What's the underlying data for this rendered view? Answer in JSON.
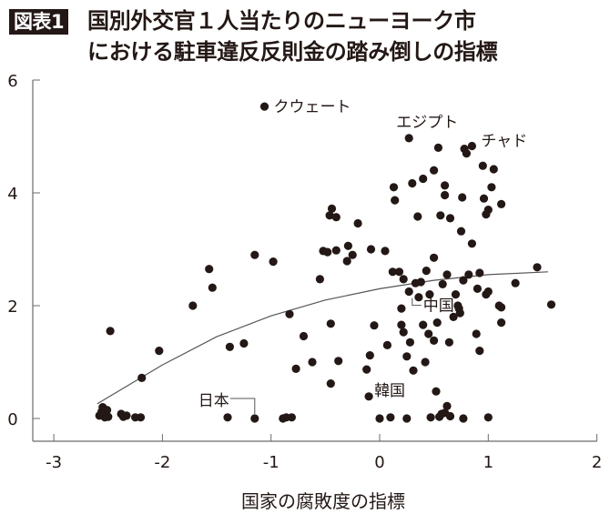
{
  "header": {
    "badge": "図表1",
    "title_line1": "国別外交官１人当たりのニューヨーク市",
    "title_line2": "における駐車違反反則金の踏み倒しの指標"
  },
  "colors": {
    "ink": "#231815",
    "axis": "#6b6b6b",
    "background": "#ffffff"
  },
  "chart_data": {
    "type": "scatter",
    "title": "国別外交官１人当たりのニューヨーク市における駐車違反反則金の踏み倒しの指標",
    "xlabel": "国家の腐敗度の指標",
    "ylabel": "",
    "xlim": [
      -3.2,
      2
    ],
    "ylim": [
      -0.4,
      6
    ],
    "x_ticks": [
      -3,
      -2,
      -1,
      0,
      1,
      2
    ],
    "y_ticks": [
      0,
      2,
      4,
      6
    ],
    "grid": false,
    "legend": null,
    "trendline": {
      "type": "quadratic fit",
      "points": [
        [
          -2.6,
          0.26
        ],
        [
          -2.0,
          0.95
        ],
        [
          -1.5,
          1.45
        ],
        [
          -1.0,
          1.82
        ],
        [
          -0.5,
          2.1
        ],
        [
          0.0,
          2.3
        ],
        [
          0.5,
          2.45
        ],
        [
          1.0,
          2.55
        ],
        [
          1.55,
          2.6
        ]
      ]
    },
    "annotations": [
      {
        "label": "クウェート",
        "x": -1.06,
        "y": 5.53
      },
      {
        "label": "エジプト",
        "x": 0.27,
        "y": 4.97
      },
      {
        "label": "チャド",
        "x": 0.85,
        "y": 4.83
      },
      {
        "label": "中国",
        "x": 0.3,
        "y": 2.2
      },
      {
        "label": "日本",
        "x": -1.15,
        "y": 0.0
      },
      {
        "label": "韓国",
        "x": -0.1,
        "y": 0.39
      }
    ],
    "points": [
      {
        "x": -2.58,
        "y": 0.05
      },
      {
        "x": -2.56,
        "y": 0.12
      },
      {
        "x": -2.55,
        "y": 0.2
      },
      {
        "x": -2.54,
        "y": 0.08
      },
      {
        "x": -2.53,
        "y": 0.02
      },
      {
        "x": -2.51,
        "y": 0.15
      },
      {
        "x": -2.5,
        "y": 0.03
      },
      {
        "x": -2.48,
        "y": 1.55
      },
      {
        "x": -2.38,
        "y": 0.08
      },
      {
        "x": -2.36,
        "y": 0.03
      },
      {
        "x": -2.33,
        "y": 0.05
      },
      {
        "x": -2.25,
        "y": 0.02
      },
      {
        "x": -2.2,
        "y": 0.02
      },
      {
        "x": -2.19,
        "y": 0.72
      },
      {
        "x": -2.03,
        "y": 1.2
      },
      {
        "x": -1.72,
        "y": 2.0
      },
      {
        "x": -1.57,
        "y": 2.65
      },
      {
        "x": -1.54,
        "y": 2.32
      },
      {
        "x": -1.4,
        "y": 0.02
      },
      {
        "x": -1.38,
        "y": 1.27
      },
      {
        "x": -1.25,
        "y": 1.33
      },
      {
        "x": -1.15,
        "y": 2.9
      },
      {
        "x": -1.15,
        "y": 0.0
      },
      {
        "x": -1.06,
        "y": 5.53
      },
      {
        "x": -0.98,
        "y": 2.78
      },
      {
        "x": -0.89,
        "y": 0.0
      },
      {
        "x": -0.86,
        "y": 0.02
      },
      {
        "x": -0.81,
        "y": 0.02
      },
      {
        "x": -0.83,
        "y": 1.85
      },
      {
        "x": -0.77,
        "y": 0.88
      },
      {
        "x": -0.7,
        "y": 1.46
      },
      {
        "x": -0.62,
        "y": 1.0
      },
      {
        "x": -0.55,
        "y": 2.47
      },
      {
        "x": -0.52,
        "y": 2.97
      },
      {
        "x": -0.48,
        "y": 2.95
      },
      {
        "x": -0.46,
        "y": 3.6
      },
      {
        "x": -0.44,
        "y": 3.72
      },
      {
        "x": -0.4,
        "y": 3.57
      },
      {
        "x": -0.4,
        "y": 2.98
      },
      {
        "x": -0.45,
        "y": 1.68
      },
      {
        "x": -0.45,
        "y": 0.62
      },
      {
        "x": -0.38,
        "y": 1.02
      },
      {
        "x": -0.3,
        "y": 2.79
      },
      {
        "x": -0.29,
        "y": 3.06
      },
      {
        "x": -0.25,
        "y": 2.9
      },
      {
        "x": -0.2,
        "y": 3.46
      },
      {
        "x": -0.12,
        "y": 0.87
      },
      {
        "x": -0.09,
        "y": 1.12
      },
      {
        "x": -0.1,
        "y": 0.39
      },
      {
        "x": -0.08,
        "y": 3.0
      },
      {
        "x": -0.05,
        "y": 1.65
      },
      {
        "x": 0.0,
        "y": 0.0
      },
      {
        "x": 0.05,
        "y": 2.97
      },
      {
        "x": 0.07,
        "y": 1.3
      },
      {
        "x": 0.1,
        "y": 0.02
      },
      {
        "x": 0.12,
        "y": 2.6
      },
      {
        "x": 0.13,
        "y": 4.1
      },
      {
        "x": 0.14,
        "y": 3.87
      },
      {
        "x": 0.18,
        "y": 2.6
      },
      {
        "x": 0.2,
        "y": 1.95
      },
      {
        "x": 0.2,
        "y": 1.66
      },
      {
        "x": 0.22,
        "y": 1.53
      },
      {
        "x": 0.22,
        "y": 2.47
      },
      {
        "x": 0.25,
        "y": 1.1
      },
      {
        "x": 0.25,
        "y": 0.0
      },
      {
        "x": 0.27,
        "y": 4.97
      },
      {
        "x": 0.27,
        "y": 2.25
      },
      {
        "x": 0.28,
        "y": 1.35
      },
      {
        "x": 0.3,
        "y": 4.17
      },
      {
        "x": 0.31,
        "y": 0.85
      },
      {
        "x": 0.33,
        "y": 2.4
      },
      {
        "x": 0.35,
        "y": 3.58
      },
      {
        "x": 0.36,
        "y": 2.15
      },
      {
        "x": 0.38,
        "y": 2.42
      },
      {
        "x": 0.4,
        "y": 4.25
      },
      {
        "x": 0.4,
        "y": 1.66
      },
      {
        "x": 0.42,
        "y": 1.0
      },
      {
        "x": 0.43,
        "y": 2.62
      },
      {
        "x": 0.45,
        "y": 1.5
      },
      {
        "x": 0.46,
        "y": 2.2
      },
      {
        "x": 0.47,
        "y": 0.02
      },
      {
        "x": 0.5,
        "y": 4.4
      },
      {
        "x": 0.5,
        "y": 1.38
      },
      {
        "x": 0.5,
        "y": 2.85
      },
      {
        "x": 0.52,
        "y": 0.48
      },
      {
        "x": 0.53,
        "y": 1.7
      },
      {
        "x": 0.54,
        "y": 4.8
      },
      {
        "x": 0.55,
        "y": 0.03
      },
      {
        "x": 0.56,
        "y": 3.6
      },
      {
        "x": 0.57,
        "y": 0.08
      },
      {
        "x": 0.58,
        "y": 2.38
      },
      {
        "x": 0.6,
        "y": 0.1
      },
      {
        "x": 0.6,
        "y": 4.13
      },
      {
        "x": 0.6,
        "y": 3.96
      },
      {
        "x": 0.62,
        "y": 0.22
      },
      {
        "x": 0.62,
        "y": 2.55
      },
      {
        "x": 0.64,
        "y": 1.35
      },
      {
        "x": 0.65,
        "y": 3.55
      },
      {
        "x": 0.65,
        "y": 0.04
      },
      {
        "x": 0.68,
        "y": 1.8
      },
      {
        "x": 0.7,
        "y": 2.2
      },
      {
        "x": 0.72,
        "y": 2.0
      },
      {
        "x": 0.73,
        "y": 1.95
      },
      {
        "x": 0.74,
        "y": 1.87
      },
      {
        "x": 0.75,
        "y": 3.32
      },
      {
        "x": 0.76,
        "y": 3.92
      },
      {
        "x": 0.77,
        "y": 2.45
      },
      {
        "x": 0.77,
        "y": 0.0
      },
      {
        "x": 0.78,
        "y": 4.78
      },
      {
        "x": 0.8,
        "y": 4.7
      },
      {
        "x": 0.82,
        "y": 2.55
      },
      {
        "x": 0.85,
        "y": 4.83
      },
      {
        "x": 0.85,
        "y": 3.1
      },
      {
        "x": 0.89,
        "y": 1.5
      },
      {
        "x": 0.9,
        "y": 2.3
      },
      {
        "x": 0.92,
        "y": 2.58
      },
      {
        "x": 0.92,
        "y": 1.2
      },
      {
        "x": 0.95,
        "y": 4.48
      },
      {
        "x": 0.96,
        "y": 3.9
      },
      {
        "x": 0.98,
        "y": 2.2
      },
      {
        "x": 0.98,
        "y": 3.62
      },
      {
        "x": 1.0,
        "y": 3.7
      },
      {
        "x": 1.0,
        "y": 2.25
      },
      {
        "x": 1.0,
        "y": 0.02
      },
      {
        "x": 1.03,
        "y": 4.1
      },
      {
        "x": 1.05,
        "y": 4.42
      },
      {
        "x": 1.1,
        "y": 2.0
      },
      {
        "x": 1.12,
        "y": 1.97
      },
      {
        "x": 1.12,
        "y": 1.7
      },
      {
        "x": 1.12,
        "y": 3.8
      },
      {
        "x": 1.25,
        "y": 2.4
      },
      {
        "x": 1.45,
        "y": 2.68
      },
      {
        "x": 1.58,
        "y": 2.02
      }
    ]
  }
}
